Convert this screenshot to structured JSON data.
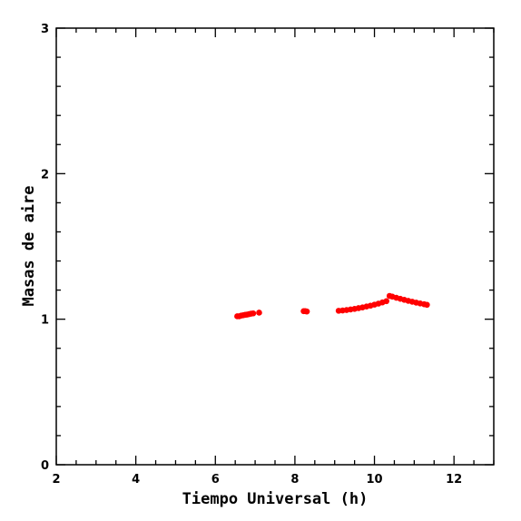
{
  "chart_data": {
    "type": "scatter",
    "title": "",
    "xlabel": "Tiempo Universal (h)",
    "ylabel": "Masas de aire",
    "xlim": [
      2,
      13
    ],
    "ylim": [
      0,
      3
    ],
    "x_ticks": [
      2,
      4,
      6,
      8,
      10,
      12
    ],
    "y_ticks": [
      0,
      1,
      2,
      3
    ],
    "x_minor_step": 0.5,
    "y_minor_step": 0.2,
    "grid": false,
    "legend": "none",
    "point_color": "#ff0000",
    "series": [
      {
        "x": [
          6.55,
          6.6,
          6.65,
          6.7,
          6.75,
          6.8,
          6.85,
          6.9,
          6.95,
          7.1,
          8.22,
          8.26,
          8.3,
          9.1,
          9.2,
          9.3,
          9.4,
          9.5,
          9.6,
          9.7,
          9.8,
          9.9,
          10.0,
          10.1,
          10.2,
          10.3,
          10.38,
          10.45,
          10.55,
          10.65,
          10.75,
          10.85,
          10.95,
          11.05,
          11.15,
          11.25,
          11.32
        ],
        "y": [
          1.02,
          1.02,
          1.025,
          1.027,
          1.03,
          1.032,
          1.035,
          1.038,
          1.04,
          1.045,
          1.055,
          1.055,
          1.053,
          1.058,
          1.06,
          1.063,
          1.067,
          1.071,
          1.076,
          1.081,
          1.087,
          1.093,
          1.1,
          1.107,
          1.115,
          1.124,
          1.16,
          1.155,
          1.147,
          1.14,
          1.133,
          1.126,
          1.12,
          1.114,
          1.108,
          1.103,
          1.099
        ]
      }
    ]
  }
}
